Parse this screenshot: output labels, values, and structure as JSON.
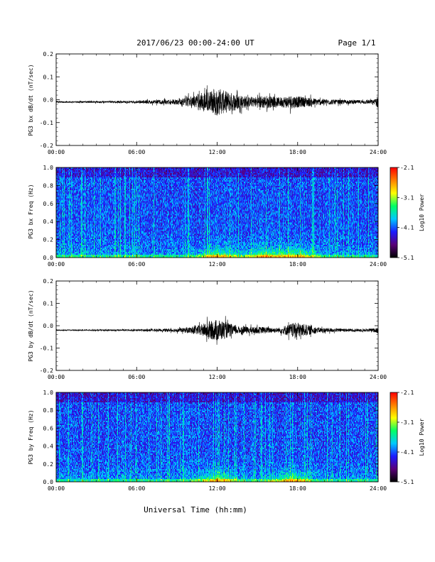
{
  "header": {
    "title": "2017/06/23  00:00-24:00 UT",
    "page": "Page 1/1"
  },
  "footer": {
    "xlabel": "Universal Time (hh:mm)"
  },
  "colors": {
    "trace": "#000000",
    "colormap": [
      "#000000",
      "#5a0078",
      "#1c1cff",
      "#00c8ff",
      "#00ff64",
      "#ffff00",
      "#ff8000",
      "#ff0000"
    ]
  },
  "chart_data": [
    {
      "type": "line",
      "ylabel": "PG3 bx dB/dt (nT/sec)",
      "xlim": [
        "00:00",
        "24:00"
      ],
      "ylim": [
        -0.2,
        0.2
      ],
      "xticks": [
        "00:00",
        "06:00",
        "12:00",
        "18:00",
        "24:00"
      ],
      "yticks": [
        "0.2",
        "0.1",
        "0.0",
        "-0.1",
        "-0.2"
      ],
      "baseline": -0.01,
      "envelope_hours": [
        0,
        3,
        6,
        8,
        9.5,
        10.5,
        11.5,
        12,
        12.5,
        13.5,
        14.5,
        15.5,
        16.5,
        17.5,
        18,
        19.5,
        21,
        22.5,
        23.7,
        24
      ],
      "envelope_amplitude": [
        0.003,
        0.004,
        0.006,
        0.01,
        0.015,
        0.035,
        0.05,
        0.06,
        0.05,
        0.035,
        0.02,
        0.03,
        0.02,
        0.03,
        0.025,
        0.015,
        0.01,
        0.008,
        0.01,
        0.03
      ]
    },
    {
      "type": "heatmap",
      "ylabel": "PG3 bx Freq (Hz)",
      "xlim": [
        "00:00",
        "24:00"
      ],
      "ylim": [
        0.0,
        1.0
      ],
      "xticks": [
        "00:00",
        "06:00",
        "12:00",
        "18:00",
        "24:00"
      ],
      "yticks": [
        "1.0",
        "0.8",
        "0.6",
        "0.4",
        "0.2",
        "0.0"
      ],
      "colorbar": {
        "label": "Log10 Power",
        "range": [
          -5.1,
          -2.1
        ],
        "ticks": [
          "-2.1",
          "-3.1",
          "-4.1",
          "-5.1"
        ]
      },
      "hotspots_hours": [
        12,
        15.5,
        18
      ]
    },
    {
      "type": "line",
      "ylabel": "PG3 by dB/dt (nT/sec)",
      "xlim": [
        "00:00",
        "24:00"
      ],
      "ylim": [
        -0.2,
        0.2
      ],
      "xticks": [
        "00:00",
        "06:00",
        "12:00",
        "18:00",
        "24:00"
      ],
      "yticks": [
        "0.2",
        "0.1",
        "0.0",
        "-0.1",
        "-0.2"
      ],
      "baseline": -0.02,
      "envelope_hours": [
        0,
        3,
        6,
        8,
        9.5,
        10.5,
        11.5,
        12,
        12.5,
        13.5,
        14.5,
        15.5,
        16.5,
        17.5,
        18,
        19.5,
        21,
        22.5,
        23.7,
        24
      ],
      "envelope_amplitude": [
        0.002,
        0.003,
        0.004,
        0.006,
        0.01,
        0.02,
        0.04,
        0.05,
        0.04,
        0.018,
        0.015,
        0.015,
        0.01,
        0.03,
        0.035,
        0.012,
        0.008,
        0.006,
        0.008,
        0.015
      ]
    },
    {
      "type": "heatmap",
      "ylabel": "PG3 by Freq (Hz)",
      "xlim": [
        "00:00",
        "24:00"
      ],
      "ylim": [
        0.0,
        1.0
      ],
      "xticks": [
        "00:00",
        "06:00",
        "12:00",
        "18:00",
        "24:00"
      ],
      "yticks": [
        "1.0",
        "0.8",
        "0.6",
        "0.4",
        "0.2",
        "0.0"
      ],
      "colorbar": {
        "label": "Log10 Power",
        "range": [
          -5.1,
          -2.1
        ],
        "ticks": [
          "-2.1",
          "-3.1",
          "-4.1",
          "-5.1"
        ]
      },
      "hotspots_hours": [
        12,
        17.5
      ]
    }
  ]
}
